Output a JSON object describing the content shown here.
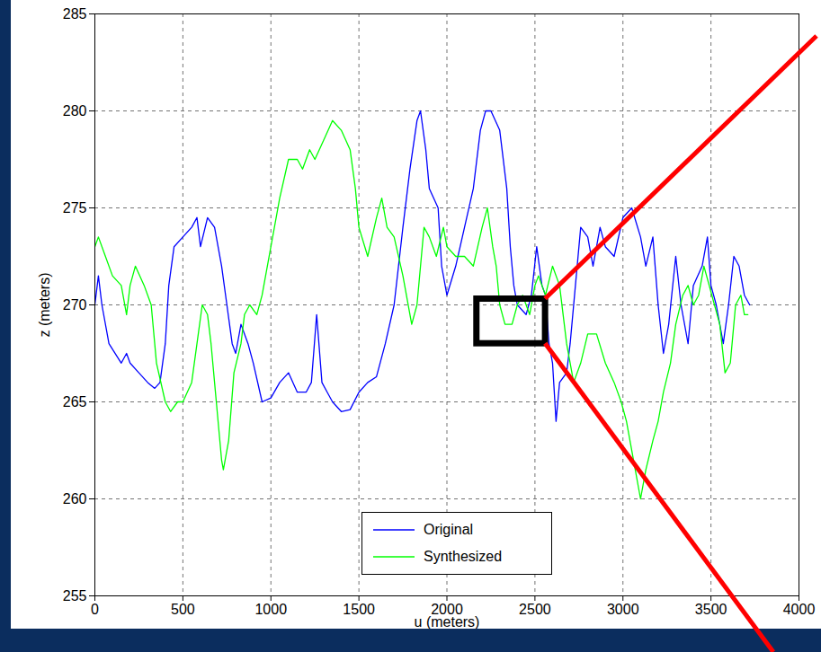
{
  "chart_data": {
    "type": "line",
    "x_label": "u (meters)",
    "y_label": "z (meters)",
    "xlim": [
      0,
      4000
    ],
    "ylim": [
      255,
      285
    ],
    "xticks": [
      0,
      500,
      1000,
      1500,
      2000,
      2500,
      3000,
      3500,
      4000
    ],
    "yticks": [
      255,
      260,
      265,
      270,
      275,
      280,
      285
    ],
    "grid": true,
    "legend": "bottom",
    "highlight": {
      "x": [
        2170,
        2560
      ],
      "y": [
        268,
        270.3
      ]
    },
    "series": [
      {
        "name": "Original",
        "color": "#0000ff",
        "x": [
          0,
          20,
          40,
          80,
          150,
          180,
          200,
          250,
          300,
          340,
          370,
          400,
          420,
          450,
          500,
          550,
          580,
          600,
          640,
          680,
          720,
          750,
          780,
          800,
          830,
          870,
          900,
          950,
          1000,
          1050,
          1100,
          1150,
          1200,
          1230,
          1260,
          1290,
          1320,
          1350,
          1400,
          1450,
          1500,
          1550,
          1600,
          1650,
          1700,
          1750,
          1790,
          1830,
          1850,
          1880,
          1900,
          1950,
          1970,
          2000,
          2050,
          2100,
          2150,
          2190,
          2220,
          2250,
          2300,
          2340,
          2360,
          2380,
          2400,
          2450,
          2480,
          2510,
          2540,
          2560,
          2580,
          2600,
          2620,
          2640,
          2680,
          2700,
          2730,
          2760,
          2800,
          2830,
          2870,
          2900,
          2950,
          3000,
          3050,
          3100,
          3130,
          3170,
          3200,
          3230,
          3260,
          3300,
          3330,
          3370,
          3400,
          3450,
          3480,
          3500,
          3530,
          3570,
          3600,
          3630,
          3660,
          3690,
          3720
        ],
        "values": [
          270,
          271.5,
          270,
          268,
          267,
          267.5,
          267,
          266.5,
          266,
          265.7,
          266,
          268,
          271,
          273,
          273.5,
          274,
          274.5,
          273,
          274.5,
          274,
          272,
          270,
          268,
          267.5,
          269,
          268,
          267,
          265,
          265.2,
          266,
          266.5,
          265.5,
          265.5,
          266,
          269.5,
          266,
          265.5,
          265,
          264.5,
          264.6,
          265.5,
          266,
          266.3,
          268,
          270,
          274,
          277,
          279.5,
          280,
          278,
          276,
          275,
          272,
          270.5,
          272,
          274,
          276,
          279,
          280,
          280,
          279,
          276,
          273,
          271,
          270,
          269.5,
          270.5,
          273,
          271,
          270.5,
          268,
          267,
          264,
          266,
          266.5,
          268,
          271,
          274,
          273.5,
          272,
          274,
          273,
          272.5,
          274.5,
          275,
          273.5,
          272,
          273.5,
          270,
          267.5,
          269,
          272.5,
          270,
          268,
          271,
          272,
          273.5,
          271,
          270,
          268,
          270,
          272.5,
          272,
          270.5,
          270
        ]
      },
      {
        "name": "Synthesized",
        "color": "#00ff00",
        "x": [
          0,
          20,
          60,
          100,
          150,
          180,
          200,
          230,
          280,
          320,
          350,
          400,
          430,
          470,
          500,
          550,
          580,
          610,
          640,
          660,
          690,
          720,
          730,
          760,
          790,
          830,
          850,
          880,
          920,
          950,
          1000,
          1050,
          1100,
          1150,
          1180,
          1220,
          1250,
          1300,
          1350,
          1400,
          1450,
          1480,
          1500,
          1550,
          1600,
          1630,
          1660,
          1700,
          1750,
          1800,
          1830,
          1870,
          1900,
          1940,
          1980,
          2000,
          2050,
          2100,
          2150,
          2200,
          2230,
          2260,
          2280,
          2300,
          2330,
          2370,
          2400,
          2430,
          2470,
          2500,
          2520,
          2560,
          2600,
          2640,
          2680,
          2720,
          2760,
          2800,
          2850,
          2900,
          2950,
          2990,
          3020,
          3060,
          3100,
          3130,
          3170,
          3200,
          3230,
          3270,
          3300,
          3340,
          3370,
          3400,
          3430,
          3460,
          3490,
          3520,
          3550,
          3580,
          3610,
          3640,
          3670,
          3690,
          3710
        ],
        "values": [
          273,
          273.5,
          272.5,
          271.5,
          271,
          269.5,
          271,
          272,
          271,
          270,
          267,
          265,
          264.5,
          265,
          265,
          266,
          268,
          270,
          269.5,
          268,
          265,
          262,
          261.5,
          263,
          266.5,
          268,
          269.5,
          270,
          269.5,
          270.5,
          273,
          275.5,
          277.5,
          277.5,
          277,
          278,
          277.5,
          278.5,
          279.5,
          279,
          278,
          276,
          274,
          272.5,
          274.5,
          275.5,
          274,
          273.5,
          271.5,
          269,
          270,
          274,
          273.5,
          272.5,
          274,
          273,
          272.5,
          272.5,
          272,
          274,
          275,
          273,
          272,
          270,
          269,
          269,
          270,
          270.5,
          269.5,
          271,
          271.5,
          270.5,
          272,
          271,
          268,
          266,
          267,
          268.5,
          268.5,
          267,
          266,
          265,
          264,
          262,
          260,
          261.5,
          263,
          264,
          265.5,
          267,
          269,
          270.5,
          271,
          270,
          270.5,
          272,
          271,
          270,
          269,
          266.5,
          267,
          270,
          270.5,
          269.5,
          269.5
        ]
      }
    ]
  }
}
